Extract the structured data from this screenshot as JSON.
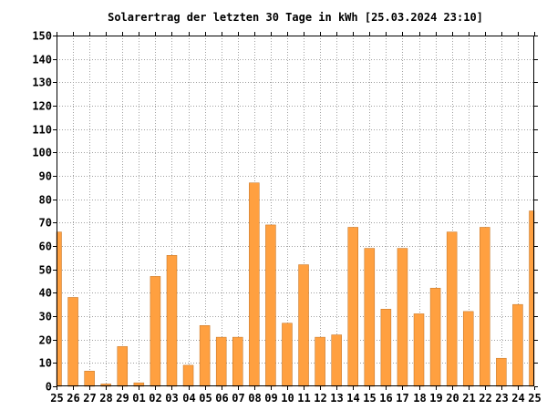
{
  "chart_data": {
    "type": "bar",
    "title": "Solarertrag der letzten 30 Tage in kWh [25.03.2024 23:10]",
    "xlabel": "",
    "ylabel": "",
    "ylim": [
      0,
      150
    ],
    "ytick_step": 10,
    "grid": true,
    "bar_color": "#ffa040",
    "bar_edge_color": "#c07020",
    "categories": [
      "25",
      "26",
      "27",
      "28",
      "29",
      "01",
      "02",
      "03",
      "04",
      "05",
      "06",
      "07",
      "08",
      "09",
      "10",
      "11",
      "12",
      "13",
      "14",
      "15",
      "16",
      "17",
      "18",
      "19",
      "20",
      "21",
      "22",
      "23",
      "24",
      "25"
    ],
    "values": [
      66,
      38,
      6.5,
      1,
      17,
      1.5,
      47,
      56,
      9,
      26,
      21,
      21,
      87,
      69,
      27,
      52,
      21,
      22,
      68,
      59,
      33,
      59,
      31,
      42,
      66,
      32,
      68,
      12,
      35,
      75
    ]
  }
}
